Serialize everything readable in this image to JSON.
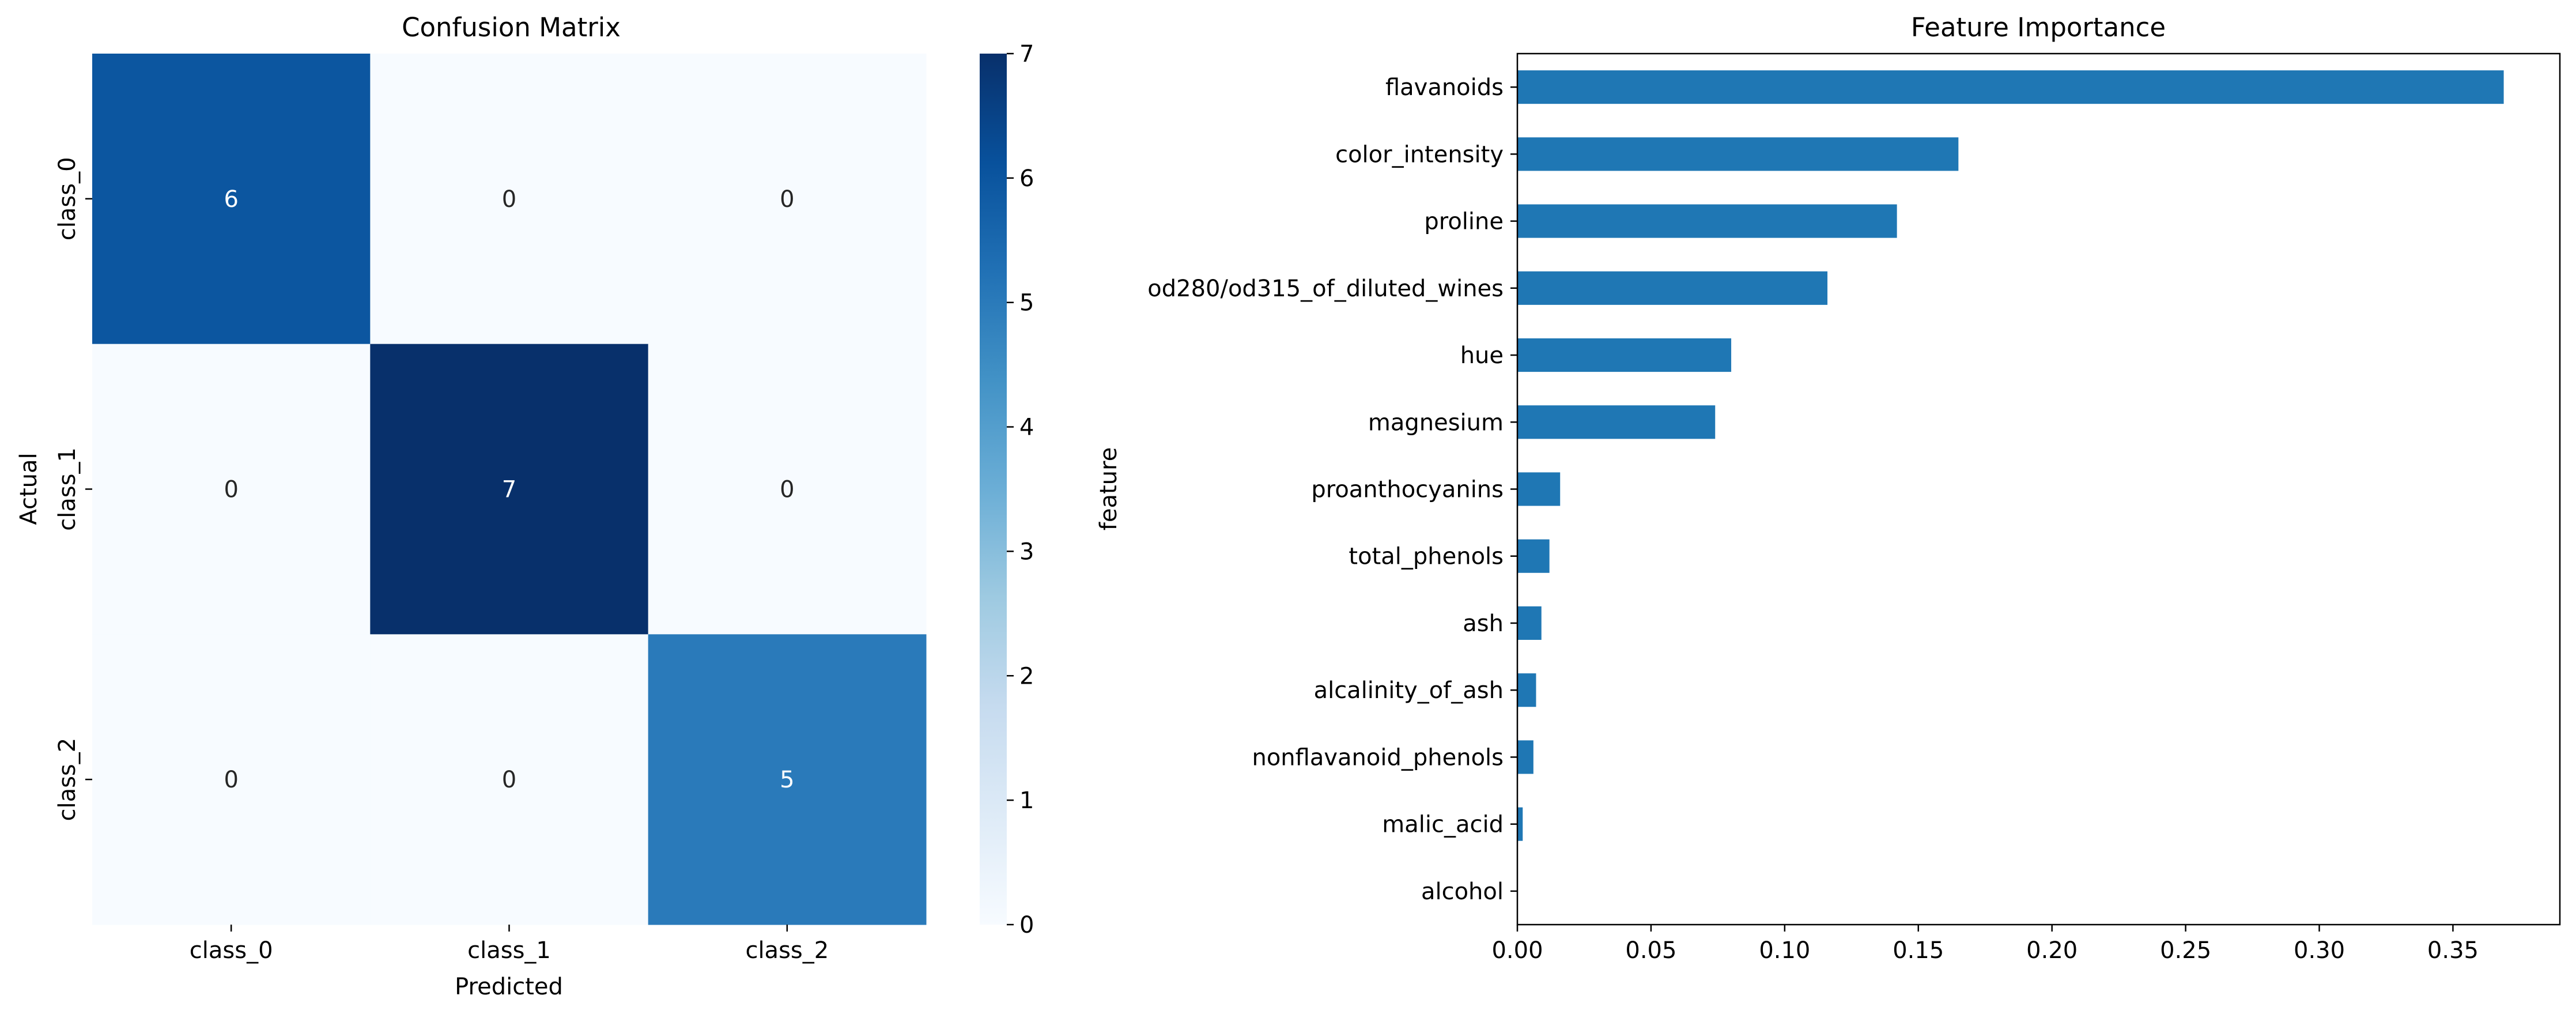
{
  "chart_data": [
    {
      "type": "heatmap",
      "title": "Confusion Matrix",
      "xlabel": "Predicted",
      "ylabel": "Actual",
      "x_categories": [
        "class_0",
        "class_1",
        "class_2"
      ],
      "y_categories": [
        "class_0",
        "class_1",
        "class_2"
      ],
      "values": [
        [
          6,
          0,
          0
        ],
        [
          0,
          7,
          0
        ],
        [
          0,
          0,
          5
        ]
      ],
      "colormap": "Blues",
      "vmin": 0,
      "vmax": 7,
      "colorbar_ticks": [
        0,
        1,
        2,
        3,
        4,
        5,
        6,
        7
      ],
      "annotations": true
    },
    {
      "type": "bar",
      "orientation": "horizontal",
      "title": "Feature Importance",
      "xlabel": "",
      "ylabel": "feature",
      "categories": [
        "flavanoids",
        "color_intensity",
        "proline",
        "od280/od315_of_diluted_wines",
        "hue",
        "magnesium",
        "proanthocyanins",
        "total_phenols",
        "ash",
        "alcalinity_of_ash",
        "nonflavanoid_phenols",
        "malic_acid",
        "alcohol"
      ],
      "values": [
        0.369,
        0.165,
        0.142,
        0.116,
        0.08,
        0.074,
        0.016,
        0.012,
        0.009,
        0.007,
        0.006,
        0.002,
        0.0
      ],
      "xlim": [
        0,
        0.39
      ],
      "xticks": [
        "0.00",
        "0.05",
        "0.10",
        "0.15",
        "0.20",
        "0.25",
        "0.30",
        "0.35"
      ],
      "bar_color": "#1f77b4",
      "grid": false
    }
  ]
}
